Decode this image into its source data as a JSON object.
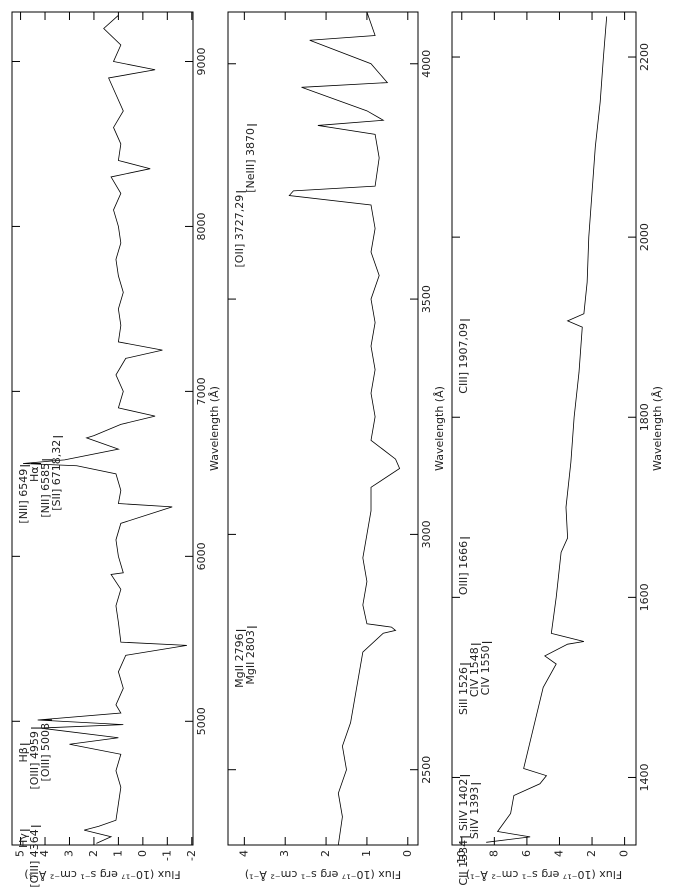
{
  "chart_data": [
    {
      "type": "line",
      "xlabel": "Wavelength (Å)",
      "ylabel": "Flux (10⁻¹⁷ erg s⁻¹ cm⁻² Å⁻¹)",
      "color": "#000000",
      "xlim": [
        4250,
        9300
      ],
      "ylim": [
        -2.05,
        5.35
      ],
      "xticks": [
        5000,
        6000,
        7000,
        8000,
        9000
      ],
      "yticks": [
        -2,
        -1,
        0,
        1,
        2,
        3,
        4,
        5
      ],
      "x": [
        4260,
        4300,
        4340,
        4364,
        4400,
        4500,
        4600,
        4700,
        4800,
        4861,
        4900,
        4959,
        4980,
        5008,
        5050,
        5100,
        5200,
        5300,
        5400,
        5460,
        5480,
        5600,
        5700,
        5800,
        5890,
        5900,
        6000,
        6100,
        6200,
        6300,
        6320,
        6400,
        6500,
        6549,
        6563,
        6585,
        6650,
        6718,
        6732,
        6800,
        6850,
        6900,
        7000,
        7100,
        7200,
        7250,
        7300,
        7400,
        7500,
        7600,
        7700,
        7800,
        7900,
        8000,
        8100,
        8200,
        8300,
        8350,
        8400,
        8500,
        8600,
        8700,
        8800,
        8900,
        8950,
        9000,
        9100,
        9200,
        9280
      ],
      "values": [
        1.9,
        1.3,
        2.4,
        1.8,
        1.1,
        1.0,
        0.9,
        1.1,
        0.9,
        3.0,
        1.0,
        4.2,
        0.8,
        4.3,
        0.9,
        1.1,
        0.8,
        1.0,
        0.7,
        -1.8,
        0.9,
        1.0,
        1.1,
        0.9,
        1.3,
        0.8,
        1.0,
        1.1,
        0.9,
        -1.2,
        1.0,
        0.9,
        1.1,
        2.7,
        4.9,
        3.2,
        1.0,
        2.3,
        2.0,
        0.9,
        -0.5,
        1.0,
        0.8,
        1.1,
        0.7,
        -0.8,
        1.0,
        0.9,
        1.0,
        0.8,
        1.0,
        1.1,
        0.9,
        1.0,
        1.2,
        0.9,
        1.3,
        -0.3,
        1.0,
        0.9,
        1.2,
        0.8,
        1.1,
        1.4,
        -0.5,
        1.2,
        0.9,
        1.6,
        1.0
      ],
      "annotations": [
        {
          "text": "Hγ",
          "x": 4340
        },
        {
          "text": "[OIII] 4364",
          "x": 4364
        },
        {
          "text": "Hβ",
          "x": 4861
        },
        {
          "text": "[OIII] 4959",
          "x": 4959
        },
        {
          "text": "[OIII] 5008",
          "x": 5008
        },
        {
          "text": "[NII] 6549",
          "x": 6549
        },
        {
          "text": "Hα",
          "x": 6563
        },
        {
          "text": "[NII] 6585",
          "x": 6585
        },
        {
          "text": "[SII] 6718,32",
          "x": 6725
        }
      ]
    },
    {
      "type": "line",
      "xlabel": "Wavelength (Å)",
      "ylabel": "Flux (10⁻¹⁷ erg s⁻¹ cm⁻² Å⁻¹)",
      "color": "#000000",
      "xlim": [
        2340,
        4110
      ],
      "ylim": [
        -0.25,
        4.4
      ],
      "xticks": [
        2500,
        3000,
        3500,
        4000
      ],
      "yticks": [
        0,
        1,
        2,
        3,
        4
      ],
      "x": [
        2340,
        2400,
        2450,
        2500,
        2550,
        2600,
        2650,
        2700,
        2750,
        2790,
        2796,
        2803,
        2810,
        2850,
        2900,
        2950,
        3000,
        3050,
        3100,
        3140,
        3160,
        3200,
        3250,
        3300,
        3350,
        3400,
        3450,
        3500,
        3550,
        3600,
        3650,
        3700,
        3720,
        3730,
        3740,
        3800,
        3850,
        3869,
        3880,
        3900,
        3950,
        3960,
        4000,
        4050,
        4060,
        4110
      ],
      "values": [
        1.7,
        1.6,
        1.7,
        1.5,
        1.6,
        1.4,
        1.3,
        1.2,
        1.1,
        0.6,
        0.3,
        0.4,
        1.0,
        1.1,
        1.0,
        1.1,
        1.0,
        0.9,
        0.9,
        0.2,
        0.3,
        0.9,
        0.8,
        0.9,
        0.8,
        0.9,
        0.8,
        0.9,
        0.7,
        0.9,
        0.8,
        0.9,
        2.9,
        2.8,
        0.8,
        0.7,
        0.8,
        2.2,
        0.6,
        1.0,
        2.6,
        0.5,
        0.9,
        2.4,
        0.8,
        1.0
      ],
      "annotations": [
        {
          "text": "MgII 2796",
          "x": 2796
        },
        {
          "text": "MgII 2803",
          "x": 2803
        },
        {
          "text": "[OII] 3727,29",
          "x": 3728
        },
        {
          "text": "[NeIII] 3870",
          "x": 3870
        }
      ]
    },
    {
      "type": "line",
      "xlabel": "Wavelength (Å)",
      "ylabel": "Flux (10⁻¹⁷ erg s⁻¹ cm⁻² Å⁻¹)",
      "color": "#000000",
      "xlim": [
        1325,
        2250
      ],
      "ylim": [
        -0.7,
        10.6
      ],
      "xticks": [
        1400,
        1600,
        1800,
        2000,
        2200
      ],
      "yticks": [
        0,
        2,
        4,
        6,
        8,
        10
      ],
      "x": [
        1328,
        1334,
        1340,
        1360,
        1380,
        1393,
        1402,
        1410,
        1440,
        1470,
        1500,
        1526,
        1535,
        1548,
        1551,
        1560,
        1600,
        1650,
        1666,
        1700,
        1750,
        1800,
        1850,
        1900,
        1907,
        1915,
        1950,
        2000,
        2050,
        2100,
        2150,
        2200,
        2245
      ],
      "values": [
        8.5,
        5.8,
        7.8,
        7.0,
        6.8,
        5.2,
        4.8,
        6.2,
        5.8,
        5.4,
        5.0,
        4.2,
        4.9,
        3.5,
        2.5,
        4.5,
        4.2,
        3.9,
        3.5,
        3.6,
        3.3,
        3.1,
        2.8,
        2.6,
        3.5,
        2.5,
        2.3,
        2.2,
        2.0,
        1.8,
        1.5,
        1.3,
        1.1
      ],
      "annotations": [
        {
          "text": "CII 1334",
          "x": 1334
        },
        {
          "text": "SiIV 1393",
          "x": 1393
        },
        {
          "text": "SiIV 1402",
          "x": 1402
        },
        {
          "text": "SiII 1526",
          "x": 1526
        },
        {
          "text": "CIV 1548",
          "x": 1548
        },
        {
          "text": "CIV 1550",
          "x": 1550
        },
        {
          "text": "OIII] 1666",
          "x": 1666
        },
        {
          "text": "CIII] 1907,09",
          "x": 1908
        }
      ]
    }
  ]
}
